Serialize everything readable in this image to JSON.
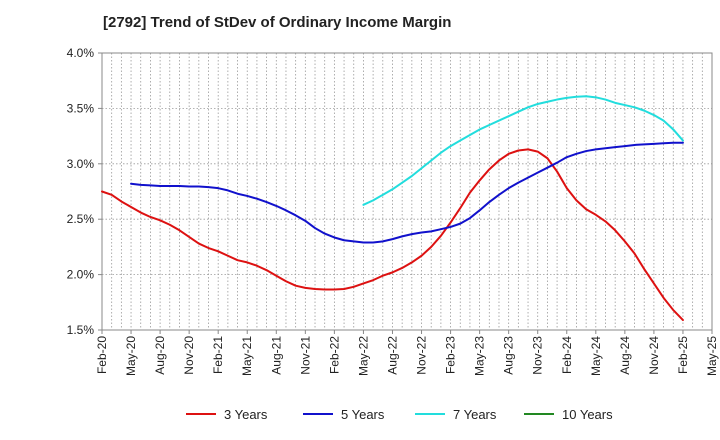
{
  "chart_data": {
    "type": "line",
    "title": "[2792]  Trend of StDev of Ordinary Income Margin",
    "xlabel": "",
    "ylabel": "",
    "ylim": [
      1.5,
      4.0
    ],
    "y_ticks": [
      1.5,
      2.0,
      2.5,
      3.0,
      3.5,
      4.0
    ],
    "y_tick_labels": [
      "1.5%",
      "2.0%",
      "2.5%",
      "3.0%",
      "3.5%",
      "4.0%"
    ],
    "x_tick_labels": [
      "Feb-20",
      "May-20",
      "Aug-20",
      "Nov-20",
      "Feb-21",
      "May-21",
      "Aug-21",
      "Nov-21",
      "Feb-22",
      "May-22",
      "Aug-22",
      "Nov-22",
      "Feb-23",
      "May-23",
      "Aug-23",
      "Nov-23",
      "Feb-24",
      "May-24",
      "Aug-24",
      "Nov-24",
      "Feb-25",
      "May-25"
    ],
    "grid": true,
    "legend_position": "bottom",
    "series": [
      {
        "name": "3 Years",
        "color": "#dd1111",
        "x": [
          "Feb-20",
          "Mar-20",
          "Apr-20",
          "May-20",
          "Jun-20",
          "Jul-20",
          "Aug-20",
          "Sep-20",
          "Oct-20",
          "Nov-20",
          "Dec-20",
          "Jan-21",
          "Feb-21",
          "Mar-21",
          "Apr-21",
          "May-21",
          "Jun-21",
          "Jul-21",
          "Aug-21",
          "Sep-21",
          "Oct-21",
          "Nov-21",
          "Dec-21",
          "Jan-22",
          "Feb-22",
          "Mar-22",
          "Apr-22",
          "May-22",
          "Jun-22",
          "Jul-22",
          "Aug-22",
          "Sep-22",
          "Oct-22",
          "Nov-22",
          "Dec-22",
          "Jan-23",
          "Feb-23",
          "Mar-23",
          "Apr-23",
          "May-23",
          "Jun-23",
          "Jul-23",
          "Aug-23",
          "Sep-23",
          "Oct-23",
          "Nov-23",
          "Dec-23",
          "Jan-24",
          "Feb-24",
          "Mar-24",
          "Apr-24",
          "May-24",
          "Jun-24",
          "Jul-24",
          "Aug-24",
          "Sep-24",
          "Oct-24",
          "Nov-24",
          "Dec-24",
          "Jan-25",
          "Feb-25"
        ],
        "values": [
          2.75,
          2.72,
          2.66,
          2.61,
          2.56,
          2.52,
          2.49,
          2.45,
          2.4,
          2.34,
          2.28,
          2.24,
          2.21,
          2.17,
          2.13,
          2.11,
          2.08,
          2.04,
          1.99,
          1.94,
          1.9,
          1.88,
          1.87,
          1.865,
          1.865,
          1.87,
          1.89,
          1.92,
          1.95,
          1.99,
          2.02,
          2.06,
          2.11,
          2.17,
          2.25,
          2.35,
          2.47,
          2.6,
          2.74,
          2.85,
          2.95,
          3.03,
          3.09,
          3.12,
          3.13,
          3.11,
          3.05,
          2.93,
          2.78,
          2.67,
          2.59,
          2.54,
          2.48,
          2.4,
          2.3,
          2.19,
          2.05,
          1.92,
          1.79,
          1.68,
          1.59
        ]
      },
      {
        "name": "5 Years",
        "color": "#1111cc",
        "x": [
          "May-20",
          "Jun-20",
          "Jul-20",
          "Aug-20",
          "Sep-20",
          "Oct-20",
          "Nov-20",
          "Dec-20",
          "Jan-21",
          "Feb-21",
          "Mar-21",
          "Apr-21",
          "May-21",
          "Jun-21",
          "Jul-21",
          "Aug-21",
          "Sep-21",
          "Oct-21",
          "Nov-21",
          "Dec-21",
          "Jan-22",
          "Feb-22",
          "Mar-22",
          "Apr-22",
          "May-22",
          "Jun-22",
          "Jul-22",
          "Aug-22",
          "Sep-22",
          "Oct-22",
          "Nov-22",
          "Dec-22",
          "Jan-23",
          "Feb-23",
          "Mar-23",
          "Apr-23",
          "May-23",
          "Jun-23",
          "Jul-23",
          "Aug-23",
          "Sep-23",
          "Oct-23",
          "Nov-23",
          "Dec-23",
          "Jan-24",
          "Feb-24",
          "Mar-24",
          "Apr-24",
          "May-24",
          "Jun-24",
          "Jul-24",
          "Aug-24",
          "Sep-24",
          "Oct-24",
          "Nov-24",
          "Dec-24",
          "Jan-25",
          "Feb-25"
        ],
        "values": [
          2.82,
          2.81,
          2.805,
          2.8,
          2.8,
          2.8,
          2.795,
          2.795,
          2.79,
          2.78,
          2.76,
          2.73,
          2.71,
          2.685,
          2.655,
          2.62,
          2.58,
          2.535,
          2.485,
          2.42,
          2.37,
          2.335,
          2.31,
          2.3,
          2.29,
          2.29,
          2.3,
          2.32,
          2.345,
          2.365,
          2.38,
          2.39,
          2.41,
          2.43,
          2.46,
          2.51,
          2.58,
          2.655,
          2.72,
          2.78,
          2.83,
          2.875,
          2.92,
          2.965,
          3.01,
          3.06,
          3.09,
          3.115,
          3.13,
          3.14,
          3.15,
          3.16,
          3.17,
          3.175,
          3.18,
          3.185,
          3.19,
          3.19
        ]
      },
      {
        "name": "7 Years",
        "color": "#22dddd",
        "x": [
          "May-22",
          "Jun-22",
          "Jul-22",
          "Aug-22",
          "Sep-22",
          "Oct-22",
          "Nov-22",
          "Dec-22",
          "Jan-23",
          "Feb-23",
          "Mar-23",
          "Apr-23",
          "May-23",
          "Jun-23",
          "Jul-23",
          "Aug-23",
          "Sep-23",
          "Oct-23",
          "Nov-23",
          "Dec-23",
          "Jan-24",
          "Feb-24",
          "Mar-24",
          "Apr-24",
          "May-24",
          "Jun-24",
          "Jul-24",
          "Aug-24",
          "Sep-24",
          "Oct-24",
          "Nov-24",
          "Dec-24",
          "Jan-25",
          "Feb-25"
        ],
        "values": [
          2.63,
          2.67,
          2.72,
          2.77,
          2.83,
          2.89,
          2.96,
          3.03,
          3.1,
          3.16,
          3.21,
          3.26,
          3.31,
          3.35,
          3.39,
          3.43,
          3.47,
          3.51,
          3.54,
          3.56,
          3.58,
          3.595,
          3.605,
          3.61,
          3.6,
          3.58,
          3.55,
          3.53,
          3.51,
          3.48,
          3.44,
          3.39,
          3.31,
          3.21
        ]
      },
      {
        "name": "10 Years",
        "color": "#228822",
        "x": [],
        "values": []
      }
    ]
  }
}
